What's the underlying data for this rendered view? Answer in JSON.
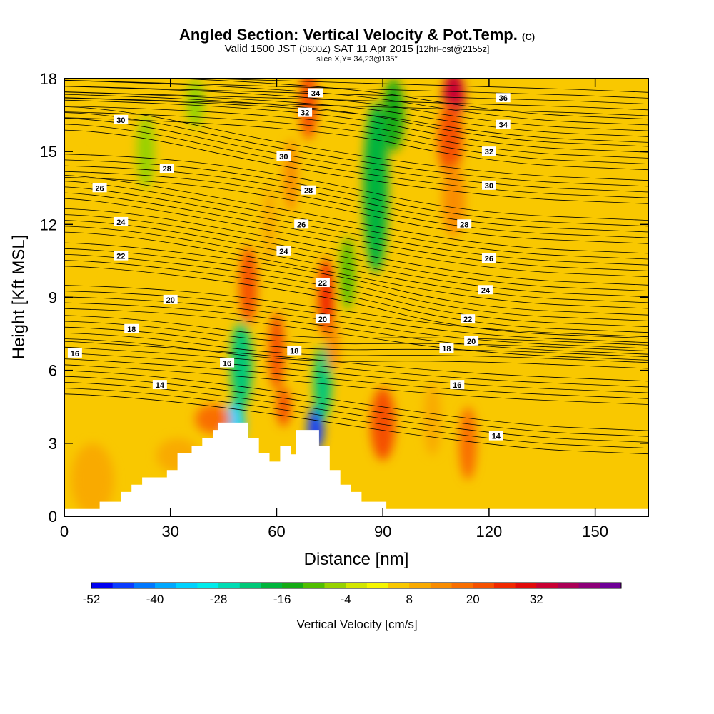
{
  "header": {
    "title": "Angled Section: Vertical Velocity & Pot.Temp.",
    "title_unit": "(C)",
    "valid_prefix": "Valid 1500 JST",
    "valid_z": "(0600Z)",
    "valid_date": "SAT 11 Apr 2015",
    "forecast": "[12hrFcst@2155z]",
    "slice": "slice X,Y= 34,23@135°"
  },
  "chart_data": {
    "type": "heatmap",
    "xlabel": "Distance [nm]",
    "ylabel": "Height [Kft MSL]",
    "xlim": [
      0,
      165
    ],
    "ylim": [
      0,
      18
    ],
    "x_ticks": [
      {
        "value": 0,
        "label": "0"
      },
      {
        "value": 30,
        "label": "30"
      },
      {
        "value": 60,
        "label": "60"
      },
      {
        "value": 90,
        "label": "90"
      },
      {
        "value": 120,
        "label": "120"
      },
      {
        "value": 150,
        "label": "150"
      }
    ],
    "y_ticks": [
      {
        "value": 0,
        "label": "0"
      },
      {
        "value": 3,
        "label": "3"
      },
      {
        "value": 6,
        "label": "6"
      },
      {
        "value": 9,
        "label": "9"
      },
      {
        "value": 12,
        "label": "12"
      },
      {
        "value": 15,
        "label": "15"
      },
      {
        "value": 18,
        "label": "18"
      }
    ],
    "background_color": "#f9c800",
    "velocity_features": [
      {
        "x": 48,
        "y": 3.8,
        "rx": 3,
        "ry": 0.9,
        "w": -36
      },
      {
        "x": 50,
        "y": 6.2,
        "rx": 3,
        "ry": 1.8,
        "w": -22
      },
      {
        "x": 71,
        "y": 3.6,
        "rx": 2.2,
        "ry": 0.9,
        "w": -48
      },
      {
        "x": 73,
        "y": 5.5,
        "rx": 2.5,
        "ry": 1.5,
        "w": -22
      },
      {
        "x": 88,
        "y": 13.5,
        "rx": 3.5,
        "ry": 3.5,
        "w": -20
      },
      {
        "x": 93,
        "y": 16.5,
        "rx": 3,
        "ry": 1.5,
        "w": -16
      },
      {
        "x": 80,
        "y": 10,
        "rx": 2,
        "ry": 1.5,
        "w": -12
      },
      {
        "x": 23,
        "y": 15,
        "rx": 2.5,
        "ry": 1.5,
        "w": -6
      },
      {
        "x": 37,
        "y": 17,
        "rx": 2.5,
        "ry": 1,
        "w": -6
      },
      {
        "x": 52,
        "y": 9.5,
        "rx": 2.5,
        "ry": 1.6,
        "w": 22
      },
      {
        "x": 58,
        "y": 12,
        "rx": 2,
        "ry": 1.6,
        "w": 10
      },
      {
        "x": 60,
        "y": 6.8,
        "rx": 2.2,
        "ry": 1.6,
        "w": 22
      },
      {
        "x": 62,
        "y": 4.5,
        "rx": 2,
        "ry": 0.8,
        "w": 20
      },
      {
        "x": 69,
        "y": 17,
        "rx": 2.5,
        "ry": 1.5,
        "w": 20
      },
      {
        "x": 64,
        "y": 14,
        "rx": 2,
        "ry": 1.5,
        "w": 12
      },
      {
        "x": 74,
        "y": 9,
        "rx": 2.2,
        "ry": 1.6,
        "w": 24
      },
      {
        "x": 76,
        "y": 7,
        "rx": 1.8,
        "ry": 1,
        "w": 14
      },
      {
        "x": 110,
        "y": 17.3,
        "rx": 3,
        "ry": 1,
        "w": 32
      },
      {
        "x": 109,
        "y": 15.5,
        "rx": 3.5,
        "ry": 1.5,
        "w": 22
      },
      {
        "x": 110,
        "y": 13,
        "rx": 3.2,
        "ry": 1.5,
        "w": 12
      },
      {
        "x": 90,
        "y": 3.8,
        "rx": 3.5,
        "ry": 1.5,
        "w": 20
      },
      {
        "x": 104,
        "y": 4,
        "rx": 2.5,
        "ry": 1.5,
        "w": 10
      },
      {
        "x": 114,
        "y": 3,
        "rx": 2.5,
        "ry": 1.5,
        "w": 16
      },
      {
        "x": 42,
        "y": 4,
        "rx": 5,
        "ry": 0.6,
        "w": 16
      },
      {
        "x": 32,
        "y": 2.5,
        "rx": 6,
        "ry": 0.7,
        "w": 10
      },
      {
        "x": 8,
        "y": 1.5,
        "rx": 6,
        "ry": 1.5,
        "w": 8
      },
      {
        "x": 3,
        "y": 12,
        "rx": 4,
        "ry": 3,
        "w": 6
      }
    ],
    "terrain_profile": [
      [
        0,
        0.3
      ],
      [
        10,
        0.3
      ],
      [
        10,
        0.6
      ],
      [
        16,
        0.6
      ],
      [
        16,
        1
      ],
      [
        19,
        1
      ],
      [
        19,
        1.3
      ],
      [
        22,
        1.3
      ],
      [
        22,
        1.6
      ],
      [
        29,
        1.6
      ],
      [
        29,
        1.9
      ],
      [
        32,
        1.9
      ],
      [
        32,
        2.6
      ],
      [
        36,
        2.6
      ],
      [
        36,
        2.9
      ],
      [
        39,
        2.9
      ],
      [
        39,
        3.2
      ],
      [
        42,
        3.2
      ],
      [
        42,
        3.55
      ],
      [
        43.5,
        3.55
      ],
      [
        43.5,
        3.85
      ],
      [
        52,
        3.85
      ],
      [
        52,
        3.2
      ],
      [
        55,
        3.2
      ],
      [
        55,
        2.6
      ],
      [
        58,
        2.6
      ],
      [
        58,
        2.25
      ],
      [
        61,
        2.25
      ],
      [
        61,
        2.9
      ],
      [
        64,
        2.9
      ],
      [
        64,
        2.55
      ],
      [
        65.5,
        2.55
      ],
      [
        65.5,
        3.55
      ],
      [
        72,
        3.55
      ],
      [
        72,
        2.9
      ],
      [
        75,
        2.9
      ],
      [
        75,
        1.9
      ],
      [
        78,
        1.9
      ],
      [
        78,
        1.3
      ],
      [
        81,
        1.3
      ],
      [
        81,
        1
      ],
      [
        84,
        1
      ],
      [
        84,
        0.6
      ],
      [
        91,
        0.6
      ],
      [
        91,
        0.3
      ],
      [
        165,
        0.3
      ]
    ],
    "isentropes": [
      {
        "value": 14,
        "labels": [
          {
            "x": 27,
            "y": 5.4
          },
          {
            "x": 122,
            "y": 3.3
          }
        ]
      },
      {
        "value": 16,
        "labels": [
          {
            "x": 3,
            "y": 6.7
          },
          {
            "x": 46,
            "y": 6.3
          },
          {
            "x": 111,
            "y": 5.4
          }
        ]
      },
      {
        "value": 18,
        "labels": [
          {
            "x": 19,
            "y": 7.7
          },
          {
            "x": 65,
            "y": 6.8
          },
          {
            "x": 108,
            "y": 6.9
          }
        ]
      },
      {
        "value": 20,
        "labels": [
          {
            "x": 30,
            "y": 8.9
          },
          {
            "x": 73,
            "y": 8.1
          },
          {
            "x": 115,
            "y": 7.2
          }
        ]
      },
      {
        "value": 22,
        "labels": [
          {
            "x": 16,
            "y": 10.7
          },
          {
            "x": 73,
            "y": 9.6
          },
          {
            "x": 114,
            "y": 8.1
          }
        ]
      },
      {
        "value": 24,
        "labels": [
          {
            "x": 16,
            "y": 12.1
          },
          {
            "x": 62,
            "y": 10.9
          },
          {
            "x": 119,
            "y": 9.3
          }
        ]
      },
      {
        "value": 26,
        "labels": [
          {
            "x": 10,
            "y": 13.5
          },
          {
            "x": 67,
            "y": 12
          },
          {
            "x": 120,
            "y": 10.6
          }
        ]
      },
      {
        "value": 28,
        "labels": [
          {
            "x": 29,
            "y": 14.3
          },
          {
            "x": 69,
            "y": 13.4
          },
          {
            "x": 113,
            "y": 12
          }
        ]
      },
      {
        "value": 30,
        "labels": [
          {
            "x": 16,
            "y": 16.3
          },
          {
            "x": 62,
            "y": 14.8
          },
          {
            "x": 120,
            "y": 13.6
          }
        ]
      },
      {
        "value": 32,
        "labels": [
          {
            "x": 68,
            "y": 16.6
          },
          {
            "x": 120,
            "y": 15
          }
        ]
      },
      {
        "value": 34,
        "labels": [
          {
            "x": 71,
            "y": 17.4
          },
          {
            "x": 124,
            "y": 16.1
          }
        ]
      },
      {
        "value": 36,
        "labels": [
          {
            "x": 124,
            "y": 17.2
          }
        ]
      }
    ],
    "colorbar": {
      "label": "Vertical Velocity [cm/s]",
      "min": -52,
      "step": 4,
      "colors": [
        "#0000f0",
        "#0a3cff",
        "#0078ff",
        "#00a8ff",
        "#00d2ff",
        "#00ecec",
        "#00dcb4",
        "#00c878",
        "#00b43c",
        "#14aa14",
        "#50be00",
        "#96d200",
        "#d2e600",
        "#f5f500",
        "#f9c800",
        "#f9aa00",
        "#f98c00",
        "#f96e00",
        "#f55000",
        "#f02800",
        "#e10a0a",
        "#c80032",
        "#aa0055",
        "#8c0078",
        "#6e0096"
      ],
      "ticks": [
        {
          "value": -52,
          "label": "-52"
        },
        {
          "value": -40,
          "label": "-40"
        },
        {
          "value": -28,
          "label": "-28"
        },
        {
          "value": -16,
          "label": "-16"
        },
        {
          "value": -4,
          "label": "-4"
        },
        {
          "value": 8,
          "label": "8"
        },
        {
          "value": 20,
          "label": "20"
        },
        {
          "value": 32,
          "label": "32"
        }
      ]
    }
  }
}
